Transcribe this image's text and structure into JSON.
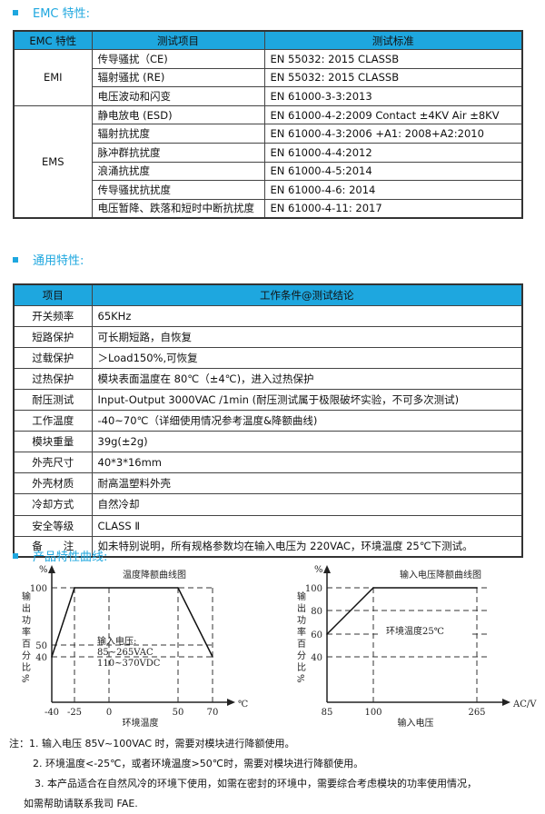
{
  "emc": {
    "title": "EMC 特性:",
    "headers": [
      "EMC 特性",
      "测试项目",
      "测试标准"
    ],
    "groups": [
      {
        "name": "EMI",
        "rows": [
          [
            "传导骚扰（CE)",
            "EN 55032: 2015     CLASSB"
          ],
          [
            "辐射骚扰 (RE)",
            "EN 55032: 2015     CLASSB"
          ],
          [
            "电压波动和闪变",
            "EN 61000-3-3:2013"
          ]
        ]
      },
      {
        "name": "EMS",
        "rows": [
          [
            "静电放电 (ESD)",
            "EN 61000-4-2:2009   Contact ±4KV   Air ±8KV"
          ],
          [
            "辐射抗扰度",
            "EN 61000-4-3:2006 +A1: 2008+A2:2010"
          ],
          [
            "脉冲群抗扰度",
            "EN 61000-4-4:2012"
          ],
          [
            "浪涌抗扰度",
            "EN 61000-4-5:2014"
          ],
          [
            "传导骚扰抗扰度",
            "EN 61000-4-6: 2014"
          ],
          [
            "电压暂降、跌落和短时中断抗扰度",
            "EN 61000-4-11: 2017"
          ]
        ]
      }
    ]
  },
  "general": {
    "title": "通用特性:",
    "headers": [
      "项目",
      "工作条件@测试结论"
    ],
    "rows": [
      [
        "开关频率",
        "65KHz"
      ],
      [
        "短路保护",
        "可长期短路，自恢复"
      ],
      [
        "过载保护",
        "＞Load150%,可恢复"
      ],
      [
        "过热保护",
        "模块表面温度在 80℃（±4℃)，进入过热保护"
      ],
      [
        "耐压测试",
        "Input-Output   3000VAC /1min   (耐压测试属于极限破坏实验，不可多次测试)"
      ],
      [
        "工作温度",
        "-40~70℃（详细使用情况参考温度&降额曲线)"
      ],
      [
        "模块重量",
        "39g(±2g)"
      ],
      [
        "外壳尺寸",
        "40*3*16mm"
      ],
      [
        "外壳材质",
        "耐高温塑料外壳"
      ],
      [
        "冷却方式",
        "自然冷却"
      ],
      [
        "安全等级",
        "CLASS Ⅱ"
      ],
      [
        "备　　注",
        "如未特别说明，所有规格参数均在输入电压为 220VAC，环境温度 25℃下测试。"
      ]
    ]
  },
  "curves": {
    "title": "产品特性曲线:"
  },
  "chart_data": [
    {
      "type": "line",
      "title": "温度降额曲线图",
      "xlabel": "环境温度",
      "ylabel": "输出功率百分比%",
      "y_unit": "%",
      "x_unit": "℃",
      "x_ticks": [
        -40,
        -25,
        0,
        50,
        70
      ],
      "y_ticks": [
        100,
        50,
        40
      ],
      "x": [
        -40,
        -25,
        50,
        70
      ],
      "y": [
        40,
        100,
        100,
        40
      ],
      "annotation": [
        "输入电压:",
        "85~265VAC",
        "110~370VDC"
      ],
      "grid": "dashed"
    },
    {
      "type": "line",
      "title": "输入电压降额曲线图",
      "xlabel": "输入电压",
      "ylabel": "输出功率百分比%",
      "y_unit": "%",
      "x_unit": "AC/V",
      "x_ticks": [
        85,
        100,
        265
      ],
      "y_ticks": [
        100,
        80,
        60,
        40
      ],
      "x": [
        85,
        100,
        265
      ],
      "y": [
        60,
        100,
        100
      ],
      "annotation": [
        "环境温度25℃"
      ],
      "grid": "dashed"
    }
  ],
  "notes": [
    "注：1. 输入电压 85V~100VAC 时，需要对模块进行降额使用。",
    "2. 环境温度<-25℃，或者环境温度>50℃时，需要对模块进行降额使用。",
    "3. 本产品适合在自然风冷的环境下使用，如需在密封的环境中，需要综合考虑模块的功率使用情况，",
    "如需帮助请联系我司 FAE."
  ],
  "colors": {
    "accent": "#1ea7df"
  }
}
